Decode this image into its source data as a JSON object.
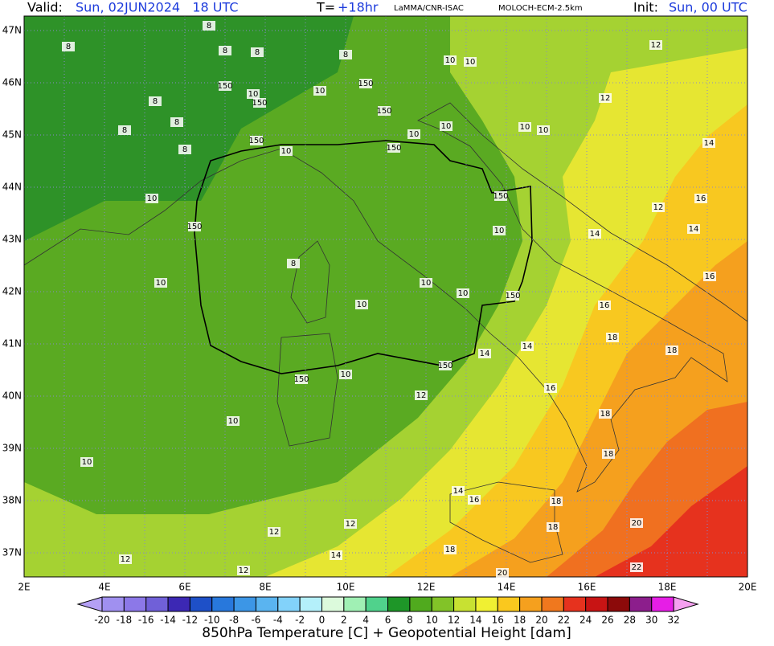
{
  "header": {
    "valid_label": "Valid:",
    "valid_time": "Sun, 02JUN2024   18 UTC",
    "lead_label": "T=",
    "lead_time": "+18hr",
    "source": "LaMMA/CNR-ISAC",
    "model": "MOLOCH-ECM-2.5km",
    "init_label": "Init:",
    "init_time": "Sun, 00 UTC"
  },
  "map": {
    "lat_labels": [
      "47N",
      "46N",
      "45N",
      "44N",
      "43N",
      "42N",
      "41N",
      "40N",
      "39N",
      "38N",
      "37N"
    ],
    "lon_labels": [
      "2E",
      "4E",
      "6E",
      "8E",
      "10E",
      "12E",
      "14E",
      "16E",
      "18E",
      "20E"
    ],
    "contour_labels": [
      8,
      8,
      8,
      8,
      8,
      10,
      10,
      12,
      150,
      10,
      150,
      10,
      150,
      8,
      12,
      150,
      8,
      8,
      10,
      10,
      10,
      10,
      150,
      8,
      150,
      10,
      14,
      150,
      10,
      16,
      12,
      150,
      10,
      14,
      14,
      8,
      10,
      10,
      16,
      10,
      150,
      10,
      16,
      18,
      14,
      14,
      150,
      18,
      10,
      150,
      16,
      12,
      18,
      10,
      18,
      10,
      14,
      16,
      18,
      12,
      20,
      12,
      18,
      14,
      18,
      12,
      12,
      20,
      22
    ]
  },
  "colorbar": {
    "levels": [
      -20,
      -18,
      -16,
      -14,
      -12,
      -10,
      -8,
      -6,
      -4,
      -2,
      0,
      2,
      4,
      6,
      8,
      10,
      12,
      14,
      16,
      18,
      20,
      22,
      24,
      26,
      28,
      30,
      32
    ],
    "colors": [
      "#a090f0",
      "#8c78e8",
      "#7060d8",
      "#3c28b4",
      "#1e50c8",
      "#2878dc",
      "#3c96e6",
      "#5ab4f0",
      "#82d2fa",
      "#b4f0fa",
      "#dcfadc",
      "#a0f0b4",
      "#50d28c",
      "#1e9628",
      "#50aa1e",
      "#82c328",
      "#c8e132",
      "#f0f032",
      "#fac81e",
      "#f5a01e",
      "#f0781e",
      "#e6321e",
      "#c81414",
      "#8c0a0a",
      "#8c1e8c",
      "#e61ee6"
    ],
    "under_color": "#b4a0f5",
    "over_color": "#f5a0f0"
  },
  "caption": "850hPa Temperature [C] + Geopotential Height [dam]"
}
